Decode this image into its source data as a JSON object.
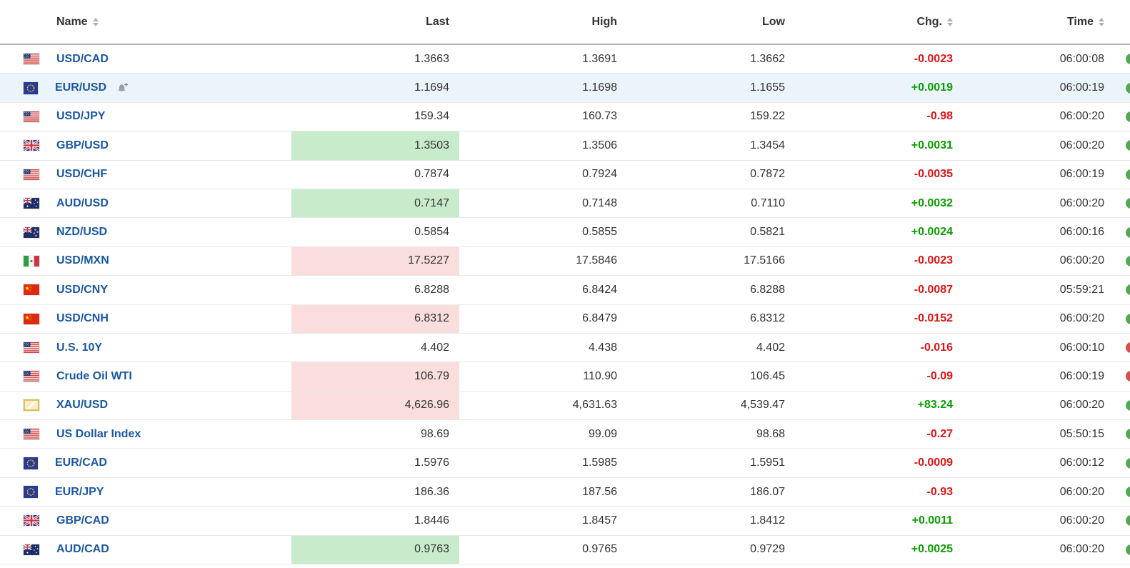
{
  "table": {
    "columns": [
      {
        "key": "name",
        "label": "Name",
        "sortable": true,
        "align": "left"
      },
      {
        "key": "last",
        "label": "Last",
        "sortable": false,
        "align": "right"
      },
      {
        "key": "high",
        "label": "High",
        "sortable": false,
        "align": "right"
      },
      {
        "key": "low",
        "label": "Low",
        "sortable": false,
        "align": "right"
      },
      {
        "key": "chg",
        "label": "Chg.",
        "sortable": true,
        "align": "right"
      },
      {
        "key": "time",
        "label": "Time",
        "sortable": true,
        "align": "right"
      }
    ],
    "rows": [
      {
        "flag": "us-flag",
        "name": "USD/CAD",
        "last": "1.3663",
        "high": "1.3691",
        "low": "1.3662",
        "chg": "-0.0023",
        "chg_direction": "down",
        "time": "06:00:08",
        "last_flash": "none",
        "selected": false,
        "alert_icon": false,
        "clock": "open"
      },
      {
        "flag": "eu-flag",
        "name": "EUR/USD",
        "last": "1.1694",
        "high": "1.1698",
        "low": "1.1655",
        "chg": "+0.0019",
        "chg_direction": "up",
        "time": "06:00:19",
        "last_flash": "none",
        "selected": true,
        "alert_icon": true,
        "clock": "open"
      },
      {
        "flag": "us-flag",
        "name": "USD/JPY",
        "last": "159.34",
        "high": "160.73",
        "low": "159.22",
        "chg": "-0.98",
        "chg_direction": "down",
        "time": "06:00:20",
        "last_flash": "none",
        "selected": false,
        "alert_icon": false,
        "clock": "open"
      },
      {
        "flag": "gb-flag",
        "name": "GBP/USD",
        "last": "1.3503",
        "high": "1.3506",
        "low": "1.3454",
        "chg": "+0.0031",
        "chg_direction": "up",
        "time": "06:00:20",
        "last_flash": "up",
        "selected": false,
        "alert_icon": false,
        "clock": "open"
      },
      {
        "flag": "us-flag",
        "name": "USD/CHF",
        "last": "0.7874",
        "high": "0.7924",
        "low": "0.7872",
        "chg": "-0.0035",
        "chg_direction": "down",
        "time": "06:00:19",
        "last_flash": "none",
        "selected": false,
        "alert_icon": false,
        "clock": "open"
      },
      {
        "flag": "au-flag",
        "name": "AUD/USD",
        "last": "0.7147",
        "high": "0.7148",
        "low": "0.7110",
        "chg": "+0.0032",
        "chg_direction": "up",
        "time": "06:00:20",
        "last_flash": "up",
        "selected": false,
        "alert_icon": false,
        "clock": "open"
      },
      {
        "flag": "nz-flag",
        "name": "NZD/USD",
        "last": "0.5854",
        "high": "0.5855",
        "low": "0.5821",
        "chg": "+0.0024",
        "chg_direction": "up",
        "time": "06:00:16",
        "last_flash": "none",
        "selected": false,
        "alert_icon": false,
        "clock": "open"
      },
      {
        "flag": "mx-flag",
        "name": "USD/MXN",
        "last": "17.5227",
        "high": "17.5846",
        "low": "17.5166",
        "chg": "-0.0023",
        "chg_direction": "down",
        "time": "06:00:20",
        "last_flash": "down",
        "selected": false,
        "alert_icon": false,
        "clock": "open"
      },
      {
        "flag": "cn-flag",
        "name": "USD/CNY",
        "last": "6.8288",
        "high": "6.8424",
        "low": "6.8288",
        "chg": "-0.0087",
        "chg_direction": "down",
        "time": "05:59:21",
        "last_flash": "none",
        "selected": false,
        "alert_icon": false,
        "clock": "open"
      },
      {
        "flag": "cn-flag",
        "name": "USD/CNH",
        "last": "6.8312",
        "high": "6.8479",
        "low": "6.8312",
        "chg": "-0.0152",
        "chg_direction": "down",
        "time": "06:00:20",
        "last_flash": "down",
        "selected": false,
        "alert_icon": false,
        "clock": "open"
      },
      {
        "flag": "us-flag",
        "name": "U.S. 10Y",
        "last": "4.402",
        "high": "4.438",
        "low": "4.402",
        "chg": "-0.016",
        "chg_direction": "down",
        "time": "06:00:10",
        "last_flash": "none",
        "selected": false,
        "alert_icon": false,
        "clock": "closed"
      },
      {
        "flag": "us-flag",
        "name": "Crude Oil WTI",
        "last": "106.79",
        "high": "110.90",
        "low": "106.45",
        "chg": "-0.09",
        "chg_direction": "down",
        "time": "06:00:19",
        "last_flash": "down",
        "selected": false,
        "alert_icon": false,
        "clock": "closed"
      },
      {
        "flag": "gold-bar",
        "name": "XAU/USD",
        "last": "4,626.96",
        "high": "4,631.63",
        "low": "4,539.47",
        "chg": "+83.24",
        "chg_direction": "up",
        "time": "06:00:20",
        "last_flash": "down",
        "selected": false,
        "alert_icon": false,
        "clock": "open"
      },
      {
        "flag": "us-flag",
        "name": "US Dollar Index",
        "last": "98.69",
        "high": "99.09",
        "low": "98.68",
        "chg": "-0.27",
        "chg_direction": "down",
        "time": "05:50:15",
        "last_flash": "none",
        "selected": false,
        "alert_icon": false,
        "clock": "open"
      },
      {
        "flag": "eu-flag",
        "name": "EUR/CAD",
        "last": "1.5976",
        "high": "1.5985",
        "low": "1.5951",
        "chg": "-0.0009",
        "chg_direction": "down",
        "time": "06:00:12",
        "last_flash": "none",
        "selected": false,
        "alert_icon": false,
        "clock": "open"
      },
      {
        "flag": "eu-flag",
        "name": "EUR/JPY",
        "last": "186.36",
        "high": "187.56",
        "low": "186.07",
        "chg": "-0.93",
        "chg_direction": "down",
        "time": "06:00:20",
        "last_flash": "none",
        "selected": false,
        "alert_icon": false,
        "clock": "open"
      },
      {
        "flag": "gb-flag",
        "name": "GBP/CAD",
        "last": "1.8446",
        "high": "1.8457",
        "low": "1.8412",
        "chg": "+0.0011",
        "chg_direction": "up",
        "time": "06:00:20",
        "last_flash": "none",
        "selected": false,
        "alert_icon": false,
        "clock": "open"
      },
      {
        "flag": "au-flag",
        "name": "AUD/CAD",
        "last": "0.9763",
        "high": "0.9765",
        "low": "0.9729",
        "chg": "+0.0025",
        "chg_direction": "up",
        "time": "06:00:20",
        "last_flash": "up",
        "selected": false,
        "alert_icon": false,
        "clock": "open"
      }
    ]
  },
  "colors": {
    "name_link": "#1a57a5",
    "chg_up": "#0a9e00",
    "chg_down": "#e01414",
    "flash_up_bg": "#c8ebcb",
    "flash_down_bg": "#fadddd",
    "selected_row_bg": "#ebf3fb",
    "clock_open": "#55a755",
    "clock_closed": "#d25050"
  }
}
